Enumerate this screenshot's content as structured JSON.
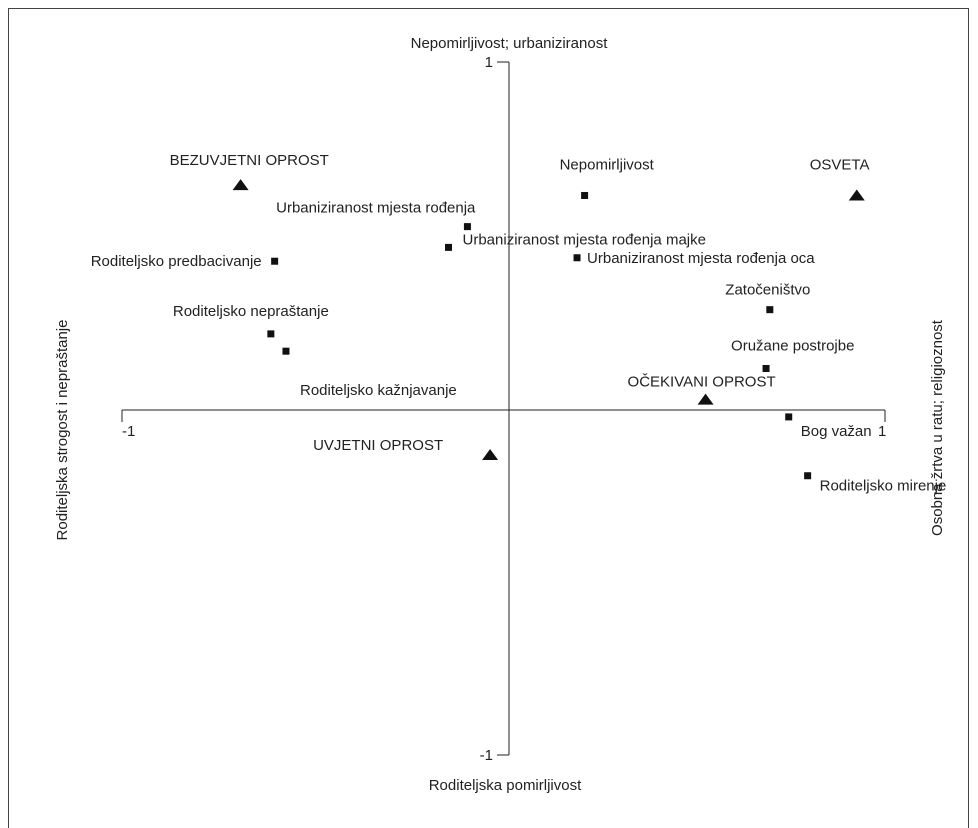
{
  "chart_data": {
    "type": "scatter",
    "axis_labels": {
      "top": "Nepomirljivost; urbaniziranost",
      "bottom": "Roditeljska pomirljivost",
      "left": "Roditeljska strogost i nepraštanje",
      "right": "Osobna žrtva u ratu; religioznost"
    },
    "ticks": {
      "x_min": "-1",
      "x_max": "1",
      "y_max": "1",
      "y_min": "-1"
    },
    "xlim": [
      -1,
      1
    ],
    "ylim": [
      -1,
      1
    ],
    "grid": false,
    "series": [
      {
        "marker": "square",
        "points": [
          {
            "label": "Nepomirljivost",
            "x": 0.2,
            "y": 0.62
          },
          {
            "label": "Urbaniziranost mjesta rođenja",
            "x": -0.11,
            "y": 0.53
          },
          {
            "label": "Urbaniziranost mjesta rođenja majke",
            "x": -0.16,
            "y": 0.47
          },
          {
            "label": "Urbaniziranost mjesta rođenja oca",
            "x": 0.18,
            "y": 0.44
          },
          {
            "label": "Roditeljsko predbacivanje",
            "x": -0.62,
            "y": 0.43
          },
          {
            "label": "Zatočeništvo",
            "x": 0.69,
            "y": 0.29
          },
          {
            "label": "Roditeljsko nepraštanje",
            "x": -0.63,
            "y": 0.22
          },
          {
            "label": "",
            "x": -0.59,
            "y": 0.17
          },
          {
            "label": "Oružane postrojbe",
            "x": 0.68,
            "y": 0.12
          },
          {
            "label": "Roditeljsko kažnjavanje",
            "x": null,
            "y": null
          },
          {
            "label": "Bog važan",
            "x": 0.74,
            "y": -0.02
          },
          {
            "label": "Roditeljsko mirenje",
            "x": 0.79,
            "y": -0.19
          }
        ]
      },
      {
        "marker": "triangle",
        "points": [
          {
            "label": "BEZUVJETNI OPROST",
            "x": -0.71,
            "y": 0.65
          },
          {
            "label": "OSVETA",
            "x": 0.92,
            "y": 0.62
          },
          {
            "label": "OČEKIVANI OPROST",
            "x": 0.52,
            "y": 0.03
          },
          {
            "label": "UVJETNI OPROST",
            "x": -0.05,
            "y": -0.13
          }
        ]
      }
    ]
  },
  "colors": {
    "marker": "#111111",
    "axis": "#222222",
    "text": "#222222"
  }
}
